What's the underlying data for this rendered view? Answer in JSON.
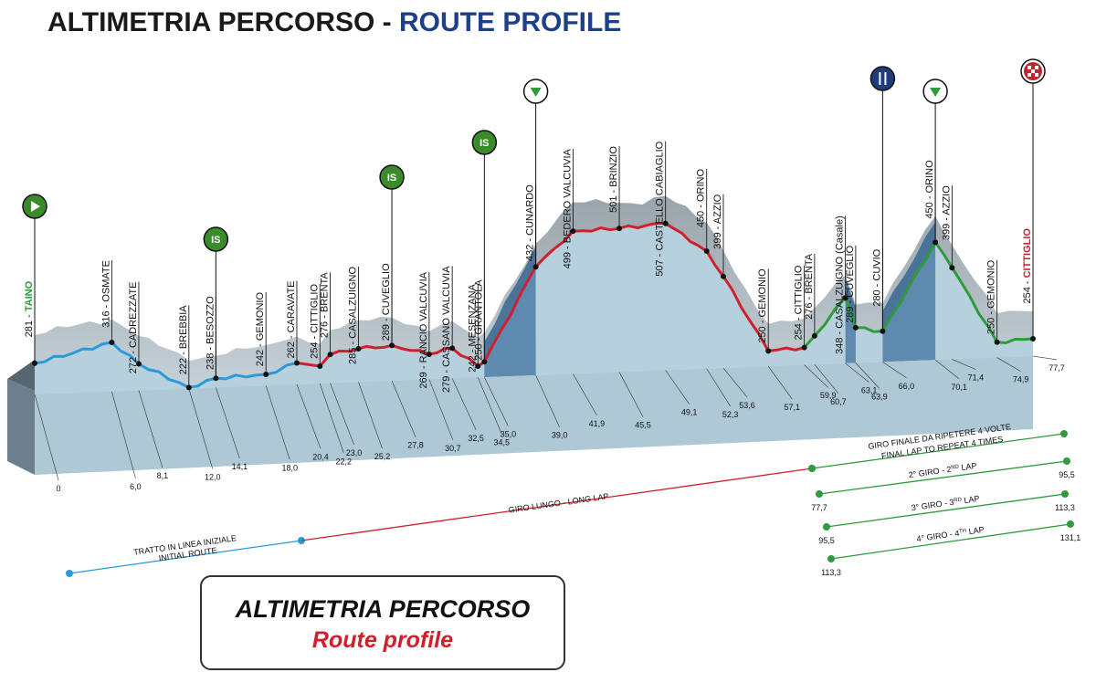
{
  "header": {
    "title_part1": "ALTIMETRIA PERCORSO - ",
    "title_part2": "ROUTE PROFILE"
  },
  "legend_box": {
    "line1": "ALTIMETRIA PERCORSO",
    "line2": "Route profile"
  },
  "colors": {
    "initial_route": "#2b9ad8",
    "long_lap": "#d0202e",
    "final_lap": "#2e9b3c",
    "profile_fill": "#b7d0de",
    "ridge": "#8f9aa3",
    "climb_highlight": "#4f7ea7",
    "base_face": "#6d7f8c"
  },
  "chart_data": {
    "type": "area",
    "x_unit": "km",
    "points": [
      {
        "name": "TAINO",
        "alt": 281,
        "km": 0,
        "segment": "initial",
        "label_color": "#2e9b3c"
      },
      {
        "name": "OSMATE",
        "alt": 316,
        "km": 6.0,
        "segment": "initial"
      },
      {
        "name": "CADREZZATE",
        "alt": 272,
        "km": 8.1,
        "segment": "initial"
      },
      {
        "name": "BREBBIA",
        "alt": 222,
        "km": 12.0,
        "segment": "initial"
      },
      {
        "name": "BESOZZO",
        "alt": 238,
        "km": 14.1,
        "segment": "initial"
      },
      {
        "name": "GEMONIO",
        "alt": 242,
        "km": 18.0,
        "segment": "initial"
      },
      {
        "name": "CARAVATE",
        "alt": 262,
        "km": 20.4,
        "segment": "initial"
      },
      {
        "name": "CITTIGLIO",
        "alt": 254,
        "km": 22.2,
        "segment": "long"
      },
      {
        "name": "BRENTA",
        "alt": 276,
        "km": 23.0,
        "segment": "long"
      },
      {
        "name": "CASALZUIGNO",
        "alt": 285,
        "km": 25.2,
        "segment": "long"
      },
      {
        "name": "CUVEGLIO",
        "alt": 289,
        "km": 27.8,
        "segment": "long"
      },
      {
        "name": "RANCIO VALCUVIA",
        "alt": 269,
        "km": 30.7,
        "segment": "long"
      },
      {
        "name": "CASSANO VALCUVIA",
        "alt": 279,
        "km": 32.5,
        "segment": "long"
      },
      {
        "name": "MESENZANA",
        "alt": 242,
        "km": 34.5,
        "segment": "long"
      },
      {
        "name": "GRANTOLA",
        "alt": 250,
        "km": 35.0,
        "segment": "long"
      },
      {
        "name": "CUNARDO",
        "alt": 432,
        "km": 39.0,
        "segment": "long"
      },
      {
        "name": "BEDERO VALCUVIA",
        "alt": 499,
        "km": 41.9,
        "segment": "long"
      },
      {
        "name": "BRINZIO",
        "alt": 501,
        "km": 45.5,
        "segment": "long"
      },
      {
        "name": "CASTELLO CABIAGLIO",
        "alt": 507,
        "km": 49.1,
        "segment": "long"
      },
      {
        "name": "ORINO",
        "alt": 450,
        "km": 52.3,
        "segment": "long"
      },
      {
        "name": "AZZIO",
        "alt": 399,
        "km": 53.6,
        "segment": "long"
      },
      {
        "name": "GEMONIO",
        "alt": 250,
        "km": 57.1,
        "segment": "long"
      },
      {
        "name": "CITTIGLIO",
        "alt": 254,
        "km": 59.9,
        "segment": "long"
      },
      {
        "name": "BRENTA",
        "alt": 276,
        "km": 60.7,
        "segment": "final"
      },
      {
        "name": "CASALZUIGNO (Casale)",
        "alt": 348,
        "km": 63.1,
        "segment": "final"
      },
      {
        "name": "CUVEGLIO",
        "alt": 289,
        "km": 63.9,
        "segment": "final"
      },
      {
        "name": "CUVIO",
        "alt": 280,
        "km": 66.0,
        "segment": "final"
      },
      {
        "name": "ORINO",
        "alt": 450,
        "km": 70.1,
        "segment": "final"
      },
      {
        "name": "AZZIO",
        "alt": 399,
        "km": 71.4,
        "segment": "final"
      },
      {
        "name": "GEMONIO",
        "alt": 250,
        "km": 74.9,
        "segment": "final"
      },
      {
        "name": "CITTIGLIO",
        "alt": 254,
        "km": 77.7,
        "segment": "final",
        "label_color": "#d0202e"
      }
    ],
    "km_labels": [
      "0",
      "6,0",
      "8,1",
      "12,0",
      "14,1",
      "18,0",
      "20,4",
      "22,2",
      "23,0",
      "25,2",
      "27,8",
      "30,7",
      "32,5",
      "34,5",
      "35,0",
      "39,0",
      "41,9",
      "45,5",
      "49,1",
      "52,3",
      "53,6",
      "57,1",
      "59,9",
      "60,7",
      "63,1",
      "63,9",
      "66,0",
      "70,1",
      "71,4",
      "74,9",
      "77,7"
    ],
    "markers": [
      {
        "type": "start",
        "at_km": 0,
        "icon": "play-icon"
      },
      {
        "type": "sprint",
        "label": "IS",
        "at_km": 14.1
      },
      {
        "type": "sprint",
        "label": "IS",
        "at_km": 27.8
      },
      {
        "type": "sprint",
        "label": "IS",
        "at_km": 35.0
      },
      {
        "type": "kom",
        "at_km": 39.0,
        "icon": "triangle-down-icon"
      },
      {
        "type": "feed",
        "at_km": 66.0,
        "icon": "fork-knife-icon"
      },
      {
        "type": "kom",
        "at_km": 70.1,
        "icon": "triangle-down-icon"
      },
      {
        "type": "finish",
        "at_km": 77.7,
        "icon": "checkered-flag-icon"
      }
    ],
    "laps": [
      {
        "label1": "TRATTO IN LINEA INIZIALE",
        "label2": "INITIAL ROUTE",
        "color": "#2b9ad8"
      },
      {
        "label1": "GIRO LUNGO - LONG LAP",
        "color": "#d0202e"
      },
      {
        "label1": "GIRO FINALE DA RIPETERE 4 VOLTE",
        "label2": "FINAL LAP TO REPEAT 4 TIMES",
        "color": "#2e9b3c"
      },
      {
        "label_pre": "2° GIRO - 2",
        "label_sup": "ND",
        "label_post": " LAP",
        "from": "77,7",
        "to": "95,5",
        "color": "#2e9b3c"
      },
      {
        "label_pre": "3° GIRO - 3",
        "label_sup": "RD",
        "label_post": " LAP",
        "from": "95,5",
        "to": "113,3",
        "color": "#2e9b3c"
      },
      {
        "label_pre": "4° GIRO - 4",
        "label_sup": "TH",
        "label_post": " LAP",
        "from": "113,3",
        "to": "131,1",
        "color": "#2e9b3c"
      }
    ]
  }
}
